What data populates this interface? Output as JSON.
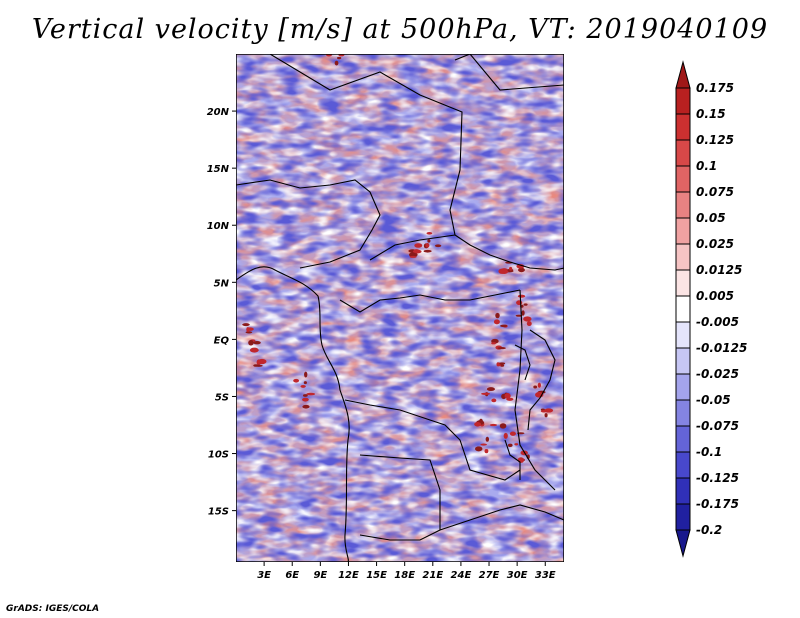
{
  "title": "Vertical velocity [m/s] at 500hPa, VT: 2019040109",
  "credit": "GrADS: IGES/COLA",
  "map": {
    "lat_labels": [
      "20N",
      "15N",
      "10N",
      "5N",
      "EQ",
      "5S",
      "10S",
      "15S"
    ],
    "lat_values": [
      20,
      15,
      10,
      5,
      0,
      -5,
      -10,
      -15
    ],
    "lon_labels": [
      "3E",
      "6E",
      "9E",
      "12E",
      "15E",
      "18E",
      "21E",
      "24E",
      "27E",
      "30E",
      "33E"
    ],
    "lon_values": [
      3,
      6,
      9,
      12,
      15,
      18,
      21,
      24,
      27,
      30,
      33
    ],
    "lat_range": [
      -19.5,
      25
    ],
    "lon_range": [
      0,
      35
    ],
    "colors": {
      "strong_positive": "#c0272d",
      "positive": "#f4a6a6",
      "neutral": "#ffffff",
      "negative": "#a8a8f0",
      "strong_negative": "#5050d8"
    }
  },
  "colorbar": {
    "labels": [
      "0.175",
      "0.15",
      "0.125",
      "0.1",
      "0.075",
      "0.05",
      "0.025",
      "0.0125",
      "0.005",
      "-0.005",
      "-0.0125",
      "-0.025",
      "-0.05",
      "-0.075",
      "-0.1",
      "-0.125",
      "-0.175",
      "-0.2"
    ],
    "colors": [
      "#a01818",
      "#b82020",
      "#cc3030",
      "#d84848",
      "#e06464",
      "#e88282",
      "#f0a2a2",
      "#f6c4c4",
      "#fbe4e4",
      "#ffffff",
      "#e4e4fb",
      "#c6c6f4",
      "#a4a4ec",
      "#8484e2",
      "#6464d8",
      "#4848cc",
      "#3030b8",
      "#2020a0",
      "#18188c"
    ]
  }
}
